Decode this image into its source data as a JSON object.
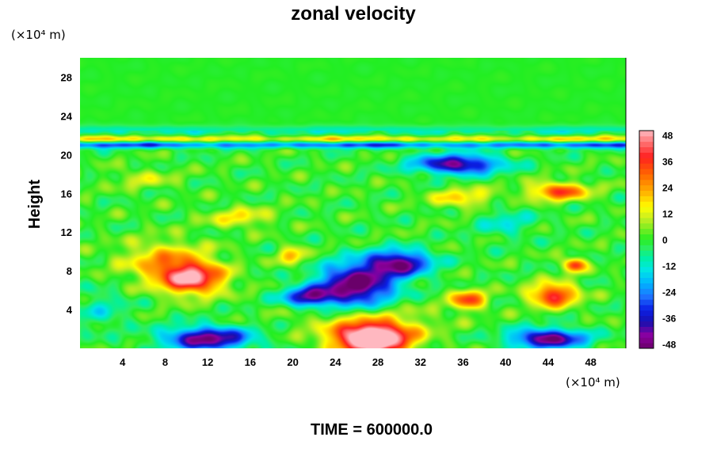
{
  "chart_data": {
    "type": "heatmap",
    "title": "zonal velocity",
    "xlabel": "",
    "ylabel": "Height",
    "x_unit": "(×10⁴ m)",
    "y_unit": "(×10⁴ m)",
    "xlim": [
      0,
      51.3
    ],
    "ylim": [
      0,
      30
    ],
    "x_ticks": [
      4,
      8,
      12,
      16,
      20,
      24,
      28,
      32,
      36,
      40,
      44,
      48
    ],
    "y_ticks": [
      4,
      8,
      12,
      16,
      20,
      24,
      28
    ],
    "colorbar": {
      "min": -50,
      "max": 50,
      "ticks": [
        48,
        36,
        24,
        12,
        0,
        -12,
        -24,
        -36,
        -48
      ],
      "stops": [
        {
          "v": -50,
          "color": "#6a006a"
        },
        {
          "v": -44,
          "color": "#8c00a0"
        },
        {
          "v": -38,
          "color": "#1a0fae"
        },
        {
          "v": -32,
          "color": "#0a20e6"
        },
        {
          "v": -26,
          "color": "#1f73ff"
        },
        {
          "v": -20,
          "color": "#00b4ff"
        },
        {
          "v": -14,
          "color": "#00e6e6"
        },
        {
          "v": -8,
          "color": "#00f0a0"
        },
        {
          "v": -3,
          "color": "#33ee55"
        },
        {
          "v": 0,
          "color": "#22ee22"
        },
        {
          "v": 5,
          "color": "#7aec22"
        },
        {
          "v": 10,
          "color": "#c8ee22"
        },
        {
          "v": 15,
          "color": "#ffff00"
        },
        {
          "v": 22,
          "color": "#ffb000"
        },
        {
          "v": 30,
          "color": "#ff6600"
        },
        {
          "v": 38,
          "color": "#ff2020"
        },
        {
          "v": 44,
          "color": "#ff6a6a"
        },
        {
          "v": 50,
          "color": "#ffb8c0"
        }
      ]
    },
    "field_features": [
      {
        "x": 27.5,
        "y": 1.0,
        "sx": 3.5,
        "sy": 1.6,
        "amp": 70
      },
      {
        "x": 27.0,
        "y": 3.0,
        "sx": 6.5,
        "sy": 2.0,
        "amp": 10
      },
      {
        "x": 10.5,
        "y": 7.2,
        "sx": 3.0,
        "sy": 1.6,
        "amp": 46
      },
      {
        "x": 8.0,
        "y": 9.0,
        "sx": 4.0,
        "sy": 2.0,
        "amp": 22
      },
      {
        "x": 44.5,
        "y": 5.5,
        "sx": 2.2,
        "sy": 1.2,
        "amp": 40
      },
      {
        "x": 36.5,
        "y": 5.0,
        "sx": 1.6,
        "sy": 1.0,
        "amp": 34
      },
      {
        "x": 46.5,
        "y": 8.6,
        "sx": 1.0,
        "sy": 0.7,
        "amp": 38
      },
      {
        "x": 45.0,
        "y": 16.2,
        "sx": 2.8,
        "sy": 0.9,
        "amp": 34
      },
      {
        "x": 36.0,
        "y": 15.5,
        "sx": 3.0,
        "sy": 1.0,
        "amp": 18
      },
      {
        "x": 15.0,
        "y": 13.5,
        "sx": 3.0,
        "sy": 1.0,
        "amp": 16
      },
      {
        "x": 20.0,
        "y": 9.5,
        "sx": 1.2,
        "sy": 1.0,
        "amp": 22
      },
      {
        "x": 6.0,
        "y": 17.5,
        "sx": 3.0,
        "sy": 1.0,
        "amp": 10
      },
      {
        "x": 12.0,
        "y": 1.0,
        "sx": 4.0,
        "sy": 1.2,
        "amp": -48
      },
      {
        "x": 44.0,
        "y": 1.0,
        "sx": 3.5,
        "sy": 1.0,
        "amp": -48
      },
      {
        "x": 26.0,
        "y": 6.5,
        "sx": 3.6,
        "sy": 2.2,
        "amp": -52
      },
      {
        "x": 30.0,
        "y": 8.8,
        "sx": 3.0,
        "sy": 1.3,
        "amp": -45
      },
      {
        "x": 21.5,
        "y": 5.3,
        "sx": 2.5,
        "sy": 1.0,
        "amp": -38
      },
      {
        "x": 35.5,
        "y": 19.0,
        "sx": 4.0,
        "sy": 1.0,
        "amp": -45
      },
      {
        "x": 40.0,
        "y": 13.0,
        "sx": 2.5,
        "sy": 1.5,
        "amp": -12
      },
      {
        "x": 2.0,
        "y": 4.0,
        "sx": 2.5,
        "sy": 2.0,
        "amp": -10
      }
    ],
    "bands": [
      {
        "y": 21.0,
        "w": 0.35,
        "amp": -30
      },
      {
        "y": 21.6,
        "w": 0.35,
        "amp": 18
      },
      {
        "y": 22.5,
        "w": 0.5,
        "amp": -10
      }
    ]
  },
  "footer": {
    "time_label": "TIME = 600000.0"
  },
  "annotation_unit_top": "(×10⁴ m)",
  "annotation_unit_bottom": "(×10⁴ m)"
}
